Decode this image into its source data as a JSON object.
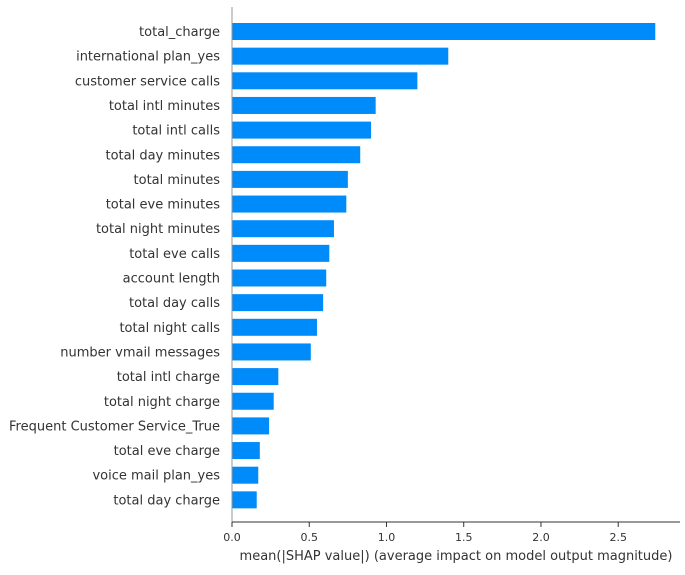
{
  "chart_data": {
    "type": "bar",
    "orientation": "horizontal",
    "categories": [
      "total_charge",
      "international plan_yes",
      "customer service calls",
      "total intl minutes",
      "total intl calls",
      "total day minutes",
      "total minutes",
      "total eve minutes",
      "total night minutes",
      "total eve calls",
      "account length",
      "total day calls",
      "total night calls",
      "number vmail messages",
      "total intl charge",
      "total night charge",
      "Frequent Customer Service_True",
      "total eve charge",
      "voice mail plan_yes",
      "total day charge"
    ],
    "values": [
      2.74,
      1.4,
      1.2,
      0.93,
      0.9,
      0.83,
      0.75,
      0.74,
      0.66,
      0.63,
      0.61,
      0.59,
      0.55,
      0.51,
      0.3,
      0.27,
      0.24,
      0.18,
      0.17,
      0.16
    ],
    "xlabel": "mean(|SHAP value|) (average impact on model output magnitude)",
    "ylabel": "",
    "title": "",
    "xlim": [
      0,
      2.9
    ],
    "xticks": [
      "0.0",
      "0.5",
      "1.0",
      "1.5",
      "2.0",
      "2.5"
    ],
    "grid": false,
    "bar_color": "#008bfb",
    "axis_color": "#333333",
    "text_color": "#333333"
  }
}
